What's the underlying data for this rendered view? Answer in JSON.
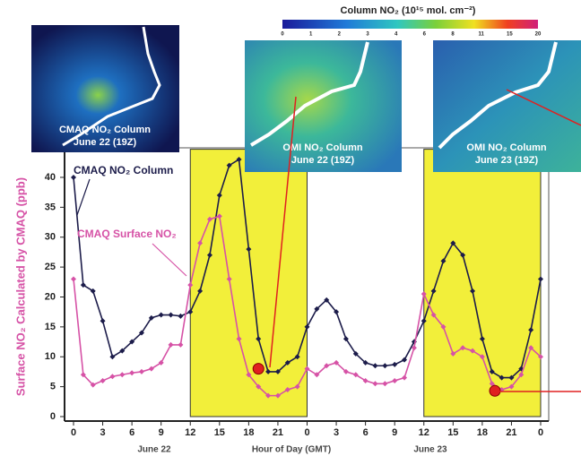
{
  "chart_data": {
    "type": "line",
    "ylabel": "Surface NO₂ Calculated by CMAQ (ppb)",
    "xlabel": "Hour of Day (GMT)",
    "day_labels": [
      "June 22",
      "June 23"
    ],
    "x": [
      0,
      1,
      2,
      3,
      4,
      5,
      6,
      7,
      8,
      9,
      10,
      11,
      12,
      13,
      14,
      15,
      16,
      17,
      18,
      19,
      20,
      21,
      22,
      23,
      24,
      25,
      26,
      27,
      28,
      29,
      30,
      31,
      32,
      33,
      34,
      35,
      36,
      37,
      38,
      39,
      40,
      41,
      42,
      43,
      44,
      45,
      46,
      47,
      48
    ],
    "xlim": [
      0,
      48
    ],
    "xticks": [
      0,
      3,
      6,
      9,
      12,
      15,
      18,
      21,
      {
        "value": 24,
        "label": "0"
      },
      {
        "value": 27,
        "label": "3"
      },
      {
        "value": 30,
        "label": "6"
      },
      {
        "value": 33,
        "label": "9"
      },
      {
        "value": 36,
        "label": "12"
      },
      {
        "value": 39,
        "label": "15"
      },
      {
        "value": 42,
        "label": "18"
      },
      {
        "value": 45,
        "label": "21"
      },
      {
        "value": 48,
        "label": "0"
      }
    ],
    "ylim": [
      0,
      45
    ],
    "yticks": [
      0,
      5,
      10,
      15,
      20,
      25,
      30,
      35,
      40
    ],
    "series": [
      {
        "name": "CMAQ  NO₂ Column",
        "color": "#1c1c4a",
        "values": [
          40,
          22,
          21,
          16,
          10,
          11,
          12.5,
          14,
          16.5,
          17,
          17,
          16.8,
          17.5,
          21,
          27,
          37,
          42,
          43,
          28,
          13,
          7.5,
          7.5,
          9,
          10,
          15,
          18,
          19.5,
          17.5,
          13,
          10.5,
          9,
          8.5,
          8.5,
          8.7,
          9.5,
          12.5,
          16,
          21,
          26,
          29,
          27,
          21,
          13,
          7.5,
          6.5,
          6.5,
          8,
          14.5,
          23
        ]
      },
      {
        "name": "CMAQ Surface NO₂",
        "color": "#d652a6",
        "values": [
          23,
          7,
          5.3,
          6,
          6.7,
          7,
          7.3,
          7.5,
          8,
          9,
          12,
          12,
          22,
          29,
          33,
          33.5,
          23,
          13,
          7,
          5,
          3.5,
          3.5,
          4.5,
          5,
          8,
          7,
          8.5,
          9,
          7.5,
          7,
          6,
          5.5,
          5.5,
          6,
          6.5,
          11.5,
          20.5,
          17,
          15,
          10.5,
          11.5,
          11,
          10,
          5.5,
          4.5,
          5,
          7,
          11.5,
          10
        ]
      }
    ],
    "shaded_ranges": [
      [
        12,
        24
      ],
      [
        36,
        48
      ]
    ],
    "shade_color": "#f2ef3a",
    "highlights": [
      {
        "x": 19,
        "y": 8
      },
      {
        "x": 43.3,
        "y": 4.3
      }
    ],
    "highlight_color": "#e02020",
    "insets": [
      {
        "line1": "CMAQ NO₂ Column",
        "line2": "June 22 (19Z)"
      },
      {
        "line1": "OMI NO₂ Column",
        "line2": "June  22 (19Z)"
      },
      {
        "line1": "OMI NO₂ Column",
        "line2": "June 23 (19Z)"
      }
    ],
    "colorbar": {
      "title": "Column NO₂ (10¹⁵ mol. cm⁻²)",
      "ticks": [
        0,
        1,
        2,
        3,
        4,
        6,
        8,
        11,
        15,
        20
      ]
    }
  }
}
